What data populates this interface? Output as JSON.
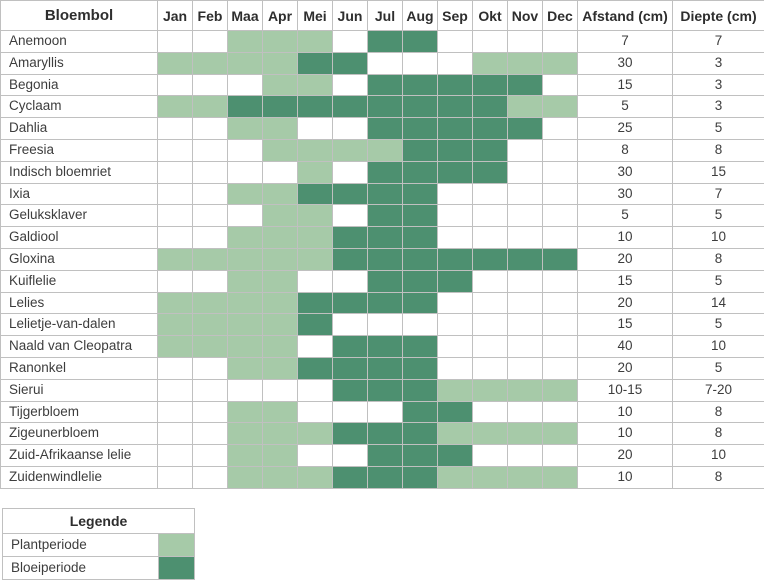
{
  "chart_data": {
    "type": "heatmap",
    "description": "Flower bulb planting calendar: per bulb, light-green months = planting period, dark-green months = blooming period",
    "columns": {
      "name_header": "Bloembol",
      "months": [
        "Jan",
        "Feb",
        "Maa",
        "Apr",
        "Mei",
        "Jun",
        "Jul",
        "Aug",
        "Sep",
        "Okt",
        "Nov",
        "Dec"
      ],
      "afstand_header": "Afstand (cm)",
      "diepte_header": "Diepte (cm)"
    },
    "cell_states": {
      "P": "Plantperiode",
      "B": "Bloeiperiode",
      "": "none"
    },
    "colors": {
      "plant": "#a6caa8",
      "bloei": "#4d9070"
    },
    "rows": [
      {
        "name": "Anemoon",
        "months": [
          "",
          "",
          "P",
          "P",
          "P",
          "",
          "B",
          "B",
          "",
          "",
          "",
          ""
        ],
        "afstand": "7",
        "diepte": "7"
      },
      {
        "name": "Amaryllis",
        "months": [
          "P",
          "P",
          "P",
          "P",
          "B",
          "B",
          "",
          "",
          "",
          "P",
          "P",
          "P"
        ],
        "afstand": "30",
        "diepte": "3"
      },
      {
        "name": "Begonia",
        "months": [
          "",
          "",
          "",
          "P",
          "P",
          "",
          "B",
          "B",
          "B",
          "B",
          "B",
          ""
        ],
        "afstand": "15",
        "diepte": "3"
      },
      {
        "name": "Cyclaam",
        "months": [
          "P",
          "P",
          "B",
          "B",
          "B",
          "B",
          "B",
          "B",
          "B",
          "B",
          "P",
          "P"
        ],
        "afstand": "5",
        "diepte": "3"
      },
      {
        "name": "Dahlia",
        "months": [
          "",
          "",
          "P",
          "P",
          "",
          "",
          "B",
          "B",
          "B",
          "B",
          "B",
          ""
        ],
        "afstand": "25",
        "diepte": "5"
      },
      {
        "name": "Freesia",
        "months": [
          "",
          "",
          "",
          "P",
          "P",
          "P",
          "P",
          "B",
          "B",
          "B",
          "",
          ""
        ],
        "afstand": "8",
        "diepte": "8"
      },
      {
        "name": "Indisch bloemriet",
        "months": [
          "",
          "",
          "",
          "",
          "P",
          "",
          "B",
          "B",
          "B",
          "B",
          "",
          ""
        ],
        "afstand": "30",
        "diepte": "15"
      },
      {
        "name": "Ixia",
        "months": [
          "",
          "",
          "P",
          "P",
          "B",
          "B",
          "B",
          "B",
          "",
          "",
          "",
          ""
        ],
        "afstand": "30",
        "diepte": "7"
      },
      {
        "name": "Geluksklaver",
        "months": [
          "",
          "",
          "",
          "P",
          "P",
          "",
          "B",
          "B",
          "",
          "",
          "",
          ""
        ],
        "afstand": "5",
        "diepte": "5"
      },
      {
        "name": "Galdiool",
        "months": [
          "",
          "",
          "P",
          "P",
          "P",
          "B",
          "B",
          "B",
          "",
          "",
          "",
          ""
        ],
        "afstand": "10",
        "diepte": "10"
      },
      {
        "name": "Gloxina",
        "months": [
          "P",
          "P",
          "P",
          "P",
          "P",
          "B",
          "B",
          "B",
          "B",
          "B",
          "B",
          "B"
        ],
        "afstand": "20",
        "diepte": "8"
      },
      {
        "name": "Kuiflelie",
        "months": [
          "",
          "",
          "P",
          "P",
          "",
          "",
          "B",
          "B",
          "B",
          "",
          "",
          ""
        ],
        "afstand": "15",
        "diepte": "5"
      },
      {
        "name": "Lelies",
        "months": [
          "P",
          "P",
          "P",
          "P",
          "B",
          "B",
          "B",
          "B",
          "",
          "",
          "",
          ""
        ],
        "afstand": "20",
        "diepte": "14"
      },
      {
        "name": "Lelietje-van-dalen",
        "months": [
          "P",
          "P",
          "P",
          "P",
          "B",
          "",
          "",
          "",
          "",
          "",
          "",
          ""
        ],
        "afstand": "15",
        "diepte": "5"
      },
      {
        "name": "Naald van Cleopatra",
        "months": [
          "P",
          "P",
          "P",
          "P",
          "",
          "B",
          "B",
          "B",
          "",
          "",
          "",
          ""
        ],
        "afstand": "40",
        "diepte": "10"
      },
      {
        "name": "Ranonkel",
        "months": [
          "",
          "",
          "P",
          "P",
          "B",
          "B",
          "B",
          "B",
          "",
          "",
          "",
          ""
        ],
        "afstand": "20",
        "diepte": "5"
      },
      {
        "name": "Sierui",
        "months": [
          "",
          "",
          "",
          "",
          "",
          "B",
          "B",
          "B",
          "P",
          "P",
          "P",
          "P"
        ],
        "afstand": "10-15",
        "diepte": "7-20"
      },
      {
        "name": "Tijgerbloem",
        "months": [
          "",
          "",
          "P",
          "P",
          "",
          "",
          "",
          "B",
          "B",
          "",
          "",
          ""
        ],
        "afstand": "10",
        "diepte": "8"
      },
      {
        "name": "Zigeunerbloem",
        "months": [
          "",
          "",
          "P",
          "P",
          "P",
          "B",
          "B",
          "B",
          "P",
          "P",
          "P",
          "P"
        ],
        "afstand": "10",
        "diepte": "8"
      },
      {
        "name": "Zuid-Afrikaanse lelie",
        "months": [
          "",
          "",
          "P",
          "P",
          "",
          "",
          "B",
          "B",
          "B",
          "",
          "",
          ""
        ],
        "afstand": "20",
        "diepte": "10"
      },
      {
        "name": "Zuidenwindlelie",
        "months": [
          "",
          "",
          "P",
          "P",
          "P",
          "B",
          "B",
          "B",
          "P",
          "P",
          "P",
          "P"
        ],
        "afstand": "10",
        "diepte": "8"
      }
    ]
  },
  "legend": {
    "title": "Legende",
    "items": [
      {
        "label": "Plantperiode",
        "state": "P"
      },
      {
        "label": "Bloeiperiode",
        "state": "B"
      }
    ]
  }
}
